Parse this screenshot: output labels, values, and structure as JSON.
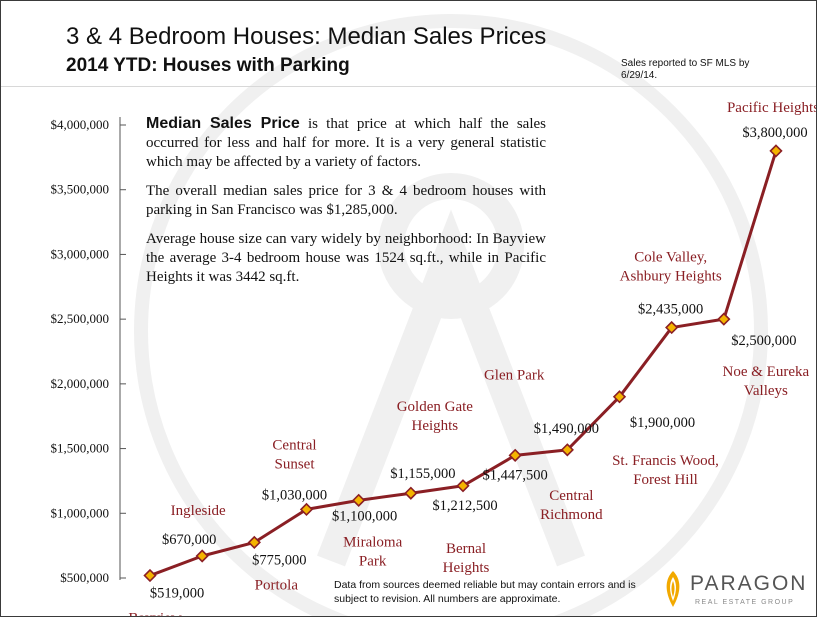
{
  "title": "3 & 4 Bedroom Houses: Median Sales Prices",
  "subtitle": "2014 YTD: Houses with Parking",
  "note_top": "Sales reported to SF MLS by 6/29/14.",
  "text_box": {
    "p1_lead": "Median Sales Price",
    "p1_rest": " is that price at which half the sales occurred for less and half for more. It is a very general statistic which may be affected by a variety of factors.",
    "p2": "The overall median sales price for 3 & 4 bedroom houses with parking in San Francisco was $1,285,000.",
    "p3": "Average house size can vary widely by neighborhood: In Bayview the average 3-4 bedroom house was 1524 sq.ft., while in Pacific Heights it was 3442 sq.ft."
  },
  "disclaimer": "Data from sources deemed reliable but may contain errors and is subject to revision.  All numbers are approximate.",
  "logo": {
    "name": "PARAGON",
    "tagline": "REAL ESTATE GROUP"
  },
  "colors": {
    "line": "#8a1f24",
    "marker_fill": "#f4b400",
    "label": "#8a1f24"
  },
  "chart_data": {
    "type": "line",
    "title": "3 & 4 Bedroom Houses: Median Sales Prices",
    "subtitle": "2014 YTD: Houses with Parking",
    "ylim": [
      500000,
      4000000
    ],
    "yticks": [
      500000,
      1000000,
      1500000,
      2000000,
      2500000,
      3000000,
      3500000,
      4000000
    ],
    "ytick_labels": [
      "$500,000",
      "$1,000,000",
      "$1,500,000",
      "$2,000,000",
      "$2,500,000",
      "$3,000,000",
      "$3,500,000",
      "$4,000,000"
    ],
    "grid": false,
    "categories": [
      [
        "Bayview"
      ],
      [
        "Ingleside"
      ],
      [
        "Portola"
      ],
      [
        "Central",
        "Sunset"
      ],
      [
        "Miraloma",
        "Park"
      ],
      [
        "Golden Gate",
        "Heights"
      ],
      [
        "Bernal",
        "Heights"
      ],
      [
        "Glen Park"
      ],
      [
        "Central",
        "Richmond"
      ],
      [
        "St. Francis Wood,",
        "Forest Hill"
      ],
      [
        "Cole Valley,",
        "Ashbury Heights"
      ],
      [
        "Noe & Eureka",
        "Valleys"
      ],
      [
        "Pacific Heights"
      ]
    ],
    "values": [
      519000,
      670000,
      775000,
      1030000,
      1100000,
      1155000,
      1212500,
      1447500,
      1490000,
      1900000,
      2435000,
      2500000,
      3800000
    ],
    "value_labels": [
      "$519,000",
      "$670,000",
      "$775,000",
      "$1,030,000",
      "$1,100,000",
      "$1,155,000",
      "$1,212,500",
      "$1,447,500",
      "$1,490,000",
      "$1,900,000",
      "$2,435,000",
      "$2,500,000",
      "$3,800,000"
    ]
  }
}
